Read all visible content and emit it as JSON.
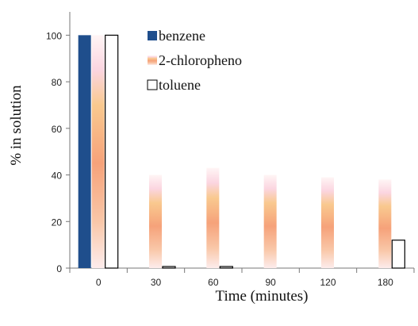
{
  "chart_data": {
    "type": "bar",
    "title": "",
    "xlabel": "Time (minutes)",
    "ylabel": "% in solution",
    "categories": [
      "0",
      "30",
      "60",
      "90",
      "120",
      "180"
    ],
    "ylim": [
      0,
      110
    ],
    "yticks": [
      0,
      20,
      40,
      60,
      80,
      100
    ],
    "grid": false,
    "legend_position": "top-center",
    "series": [
      {
        "name": "benzene",
        "values": [
          100,
          0,
          0,
          0,
          0,
          0
        ],
        "color": "#1f4e8c",
        "style": "solid"
      },
      {
        "name": "2-chloropheno",
        "values": [
          100,
          40,
          43,
          40,
          39,
          38
        ],
        "color": "#f4a460",
        "style": "gradient"
      },
      {
        "name": "toluene",
        "values": [
          100,
          0.5,
          0.5,
          0,
          0,
          12
        ],
        "color": "#ffffff",
        "style": "outline"
      }
    ]
  }
}
